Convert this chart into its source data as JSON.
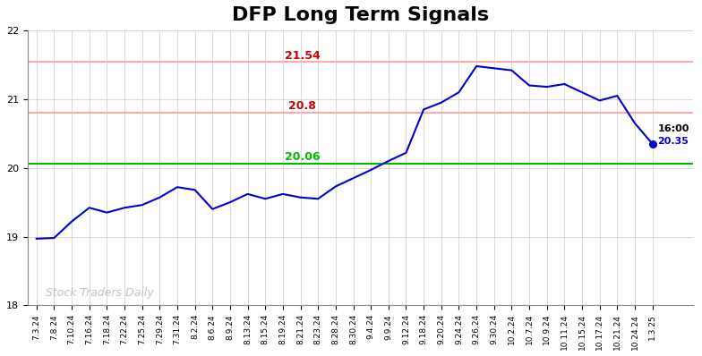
{
  "title": "DFP Long Term Signals",
  "title_fontsize": 16,
  "title_fontweight": "bold",
  "ylim": [
    18,
    22
  ],
  "yticks": [
    18,
    19,
    20,
    21,
    22
  ],
  "hline_green": 20.06,
  "hline_green_label": "20.06",
  "hline_pink1": 20.8,
  "hline_pink1_label": "20.8",
  "hline_pink2": 21.54,
  "hline_pink2_label": "21.54",
  "hline_color_green": "#00bb00",
  "hline_color_pink": "#ffaaaa",
  "hline_color_red_text": "#cc0000",
  "line_color": "#0000cc",
  "last_point_label_time": "16:00",
  "last_point_label_value": "20.35",
  "watermark": "Stock Traders Daily",
  "background_color": "#ffffff",
  "grid_color": "#cccccc",
  "x_labels": [
    "7.3.24",
    "7.8.24",
    "7.10.24",
    "7.16.24",
    "7.18.24",
    "7.22.24",
    "7.25.24",
    "7.29.24",
    "7.31.24",
    "8.2.24",
    "8.6.24",
    "8.9.24",
    "8.13.24",
    "8.15.24",
    "8.19.24",
    "8.21.24",
    "8.23.24",
    "8.28.24",
    "8.30.24",
    "9.4.24",
    "9.9.24",
    "9.12.24",
    "9.18.24",
    "9.20.24",
    "9.24.24",
    "9.26.24",
    "9.30.24",
    "10.2.24",
    "10.7.24",
    "10.9.24",
    "10.11.24",
    "10.15.24",
    "10.17.24",
    "10.21.24",
    "10.24.24",
    "1.3.25"
  ],
  "y_values": [
    18.97,
    18.98,
    19.22,
    19.42,
    19.35,
    19.42,
    19.46,
    19.57,
    19.72,
    19.68,
    19.4,
    19.5,
    19.62,
    19.55,
    19.62,
    19.57,
    19.55,
    19.73,
    19.85,
    19.97,
    20.1,
    20.22,
    20.85,
    20.95,
    21.1,
    21.48,
    21.45,
    21.42,
    21.2,
    21.18,
    21.22,
    21.1,
    20.98,
    21.05,
    20.65,
    20.35
  ]
}
